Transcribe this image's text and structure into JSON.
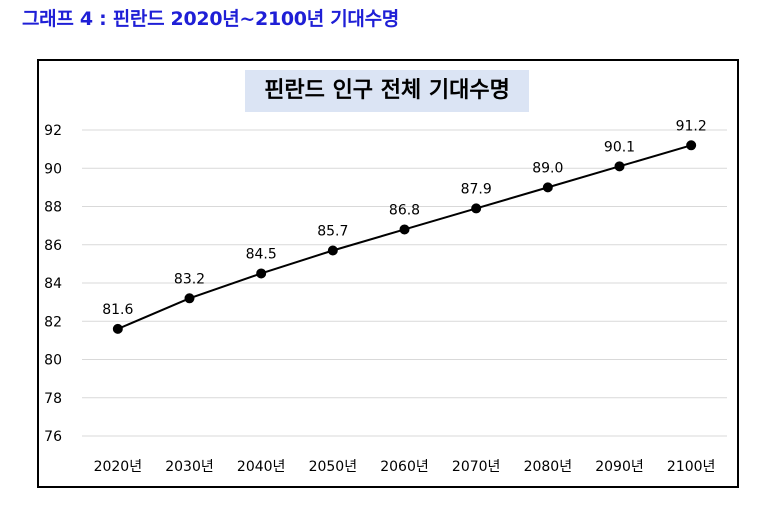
{
  "caption": "그래프 4 : 핀란드 2020년~2100년 기대수명",
  "colors": {
    "caption": "#1f1fd6",
    "title_bg": "#dbe4f4",
    "series": "#000000",
    "grid": "#d9d9d9"
  },
  "chart_data": {
    "type": "line",
    "title": "핀란드 인구 전체 기대수명",
    "categories": [
      "2020년",
      "2030년",
      "2040년",
      "2050년",
      "2060년",
      "2070년",
      "2080년",
      "2090년",
      "2100년"
    ],
    "series": [
      {
        "name": "기대수명",
        "values": [
          81.6,
          83.2,
          84.5,
          85.7,
          86.8,
          87.9,
          89.0,
          90.1,
          91.2
        ]
      }
    ],
    "data_labels": [
      "81.6",
      "83.2",
      "84.5",
      "85.7",
      "86.8",
      "87.9",
      "89.0",
      "90.1",
      "91.2"
    ],
    "yticks": [
      76,
      78,
      80,
      82,
      84,
      86,
      88,
      90,
      92
    ],
    "ylim": [
      76,
      92
    ],
    "xlabel": "",
    "ylabel": "",
    "grid": true,
    "legend": "none"
  }
}
